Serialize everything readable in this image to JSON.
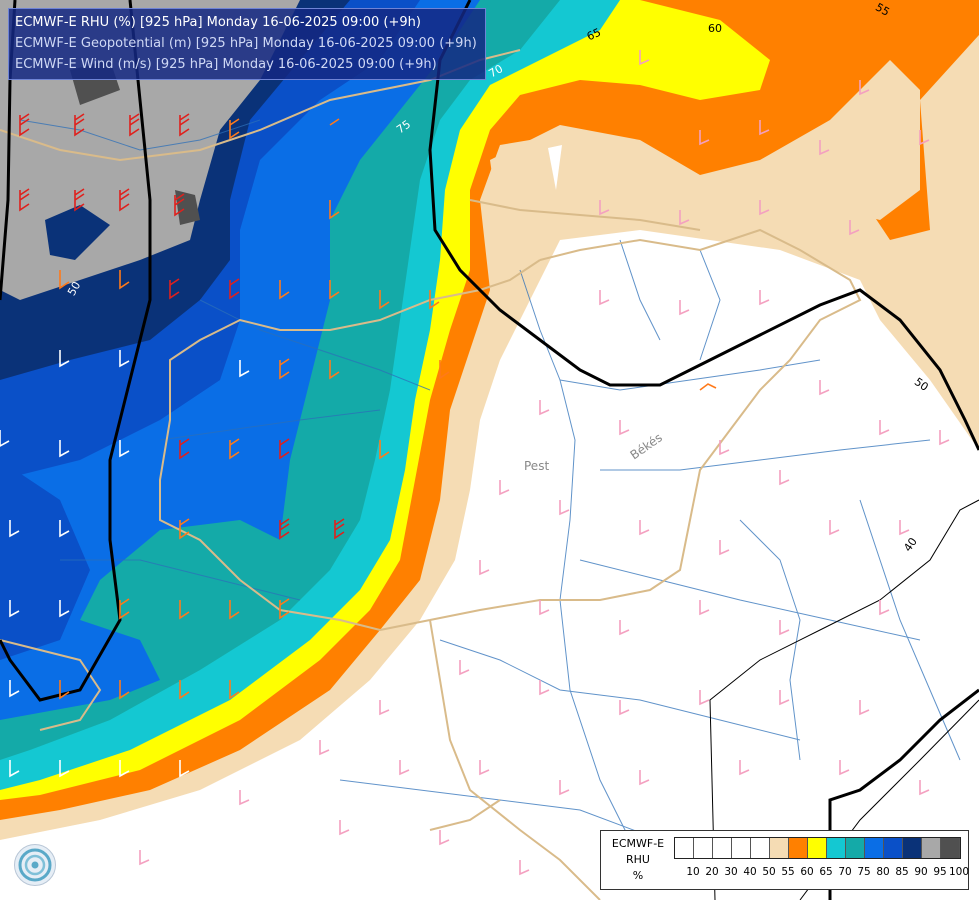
{
  "header": {
    "lines": [
      "ECMWF-E RHU (%) [925 hPa] Monday 16-06-2025 09:00 (+9h)",
      "ECMWF-E Geopotential (m) [925 hPa] Monday 16-06-2025 09:00 (+9h)",
      "ECMWF-E Wind (m/s) [925 hPa] Monday 16-06-2025 09:00 (+9h)"
    ],
    "line_colors": [
      "#ffffff",
      "#cfd8f5",
      "#cfd8f5"
    ]
  },
  "map_labels": {
    "cities": [
      "Pest",
      "Békés"
    ],
    "rhu_contours": [
      "55",
      "60",
      "65",
      "70",
      "75"
    ],
    "geopotential_contours": [
      "40",
      "50",
      "50"
    ]
  },
  "legend": {
    "model": "ECMWF-E",
    "variable": "RHU",
    "unit": "%",
    "ticks": [
      "10",
      "20",
      "30",
      "40",
      "50",
      "55",
      "60",
      "65",
      "70",
      "75",
      "80",
      "85",
      "90",
      "95",
      "100"
    ],
    "colors": [
      "#ffffff",
      "#ffffff",
      "#ffffff",
      "#ffffff",
      "#ffffff",
      "#f5dcb4",
      "#ff8000",
      "#ffff00",
      "#14c8d2",
      "#14aaa8",
      "#0a6ee6",
      "#0a50c8",
      "#0a3278",
      "#a8a8a8",
      "#505050"
    ]
  },
  "colors": {
    "rhu_55": "#f5dcb4",
    "rhu_60": "#ff8000",
    "rhu_65": "#ffff00",
    "rhu_70": "#14c8d2",
    "rhu_75": "#14aaa8",
    "rhu_80": "#0a6ee6",
    "rhu_85": "#0a50c8",
    "rhu_90": "#0a3278",
    "rhu_95": "#a8a8a8",
    "rhu_100": "#505050",
    "geopotential_line": "#000000",
    "rivers": "#2c6fb8",
    "borders": "#d9bb8a",
    "wind_barb_light": "#f4a0c0",
    "wind_barb_strong": "#ff7a1a",
    "wind_barb_very_strong": "#e0201c"
  },
  "logo": {
    "icon": "ecmwf-swirl-icon"
  }
}
